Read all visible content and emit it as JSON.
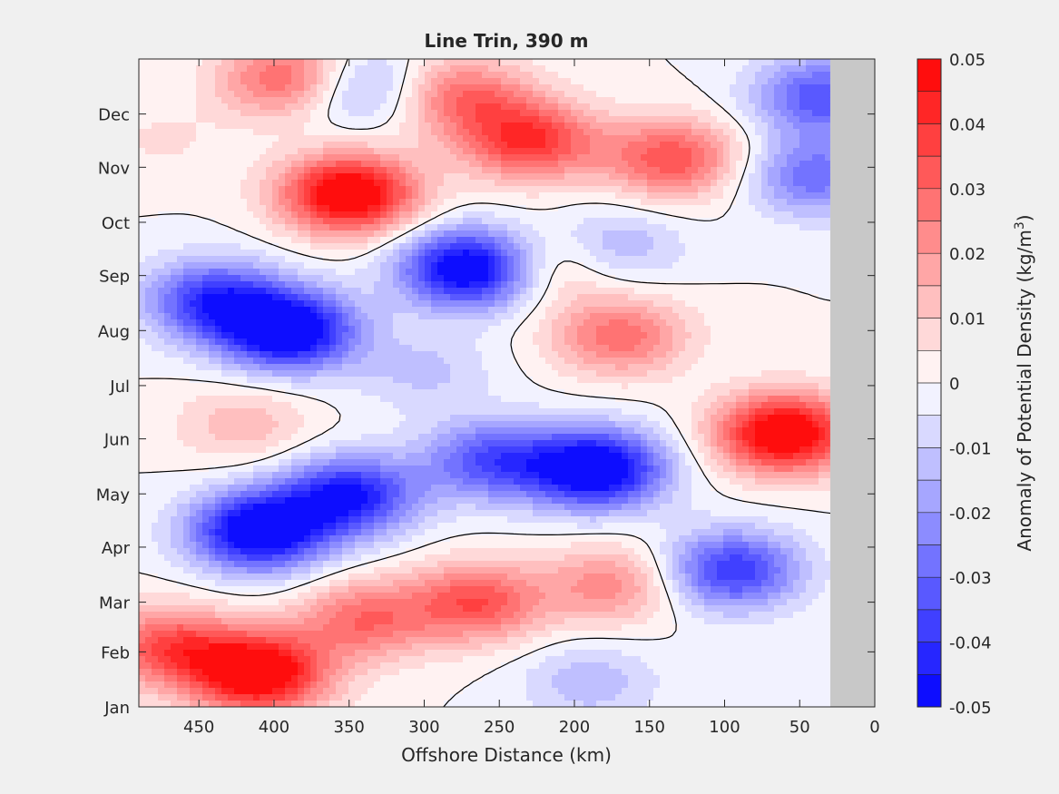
{
  "chart_data": {
    "type": "heatmap",
    "title": "Line Trin, 390 m",
    "xlabel": "Offshore Distance (km)",
    "ylabel": "",
    "xlim": [
      490,
      0
    ],
    "x_reversed": true,
    "x_ticks": [
      450,
      400,
      350,
      300,
      250,
      200,
      150,
      100,
      50,
      0
    ],
    "y_ticks": [
      "Jan",
      "Feb",
      "Mar",
      "Apr",
      "May",
      "Jun",
      "Jul",
      "Aug",
      "Sep",
      "Oct",
      "Nov",
      "Dec"
    ],
    "y_tick_day": [
      1,
      32,
      60,
      91,
      121,
      152,
      182,
      213,
      244,
      274,
      305,
      335
    ],
    "ylim_day": [
      1,
      366
    ],
    "data_x_max_km": 490,
    "data_x_min_km": 30,
    "no_data_color": "#c8c8c8",
    "contour_zero_color": "#000000",
    "colorbar": {
      "label": "Anomaly of Potential Density (kg/m",
      "label_sup": "3",
      "label_close": ")",
      "ticks": [
        "0.05",
        "0.04",
        "0.03",
        "0.02",
        "0.01",
        "0",
        "-0.01",
        "-0.02",
        "-0.03",
        "-0.04",
        "-0.05"
      ],
      "tick_values": [
        0.05,
        0.04,
        0.03,
        0.02,
        0.01,
        0,
        -0.01,
        -0.02,
        -0.03,
        -0.04,
        -0.05
      ],
      "levels": [
        -0.05,
        -0.045,
        -0.04,
        -0.035,
        -0.03,
        -0.025,
        -0.02,
        -0.015,
        -0.01,
        -0.005,
        0,
        0.005,
        0.01,
        0.015,
        0.02,
        0.025,
        0.03,
        0.035,
        0.04,
        0.045,
        0.05
      ],
      "positive_color": "#ff0000",
      "negative_color": "#0000ff",
      "mid_color": "#ffffff"
    },
    "anomaly_features": [
      {
        "x_km": 410,
        "day": 20,
        "value": 0.05
      },
      {
        "x_km": 470,
        "day": 35,
        "value": 0.03
      },
      {
        "x_km": 340,
        "day": 50,
        "value": 0.025
      },
      {
        "x_km": 265,
        "day": 60,
        "value": 0.03
      },
      {
        "x_km": 175,
        "day": 70,
        "value": 0.02
      },
      {
        "x_km": 190,
        "day": 15,
        "value": -0.012
      },
      {
        "x_km": 410,
        "day": 100,
        "value": -0.05
      },
      {
        "x_km": 350,
        "day": 120,
        "value": -0.04
      },
      {
        "x_km": 185,
        "day": 135,
        "value": -0.05
      },
      {
        "x_km": 255,
        "day": 140,
        "value": -0.03
      },
      {
        "x_km": 95,
        "day": 78,
        "value": -0.035
      },
      {
        "x_km": 60,
        "day": 155,
        "value": 0.05
      },
      {
        "x_km": 300,
        "day": 190,
        "value": -0.01
      },
      {
        "x_km": 440,
        "day": 230,
        "value": -0.035
      },
      {
        "x_km": 390,
        "day": 213,
        "value": -0.05
      },
      {
        "x_km": 270,
        "day": 248,
        "value": -0.05
      },
      {
        "x_km": 170,
        "day": 210,
        "value": 0.025
      },
      {
        "x_km": 350,
        "day": 290,
        "value": 0.05
      },
      {
        "x_km": 230,
        "day": 320,
        "value": 0.035
      },
      {
        "x_km": 135,
        "day": 310,
        "value": 0.03
      },
      {
        "x_km": 390,
        "day": 355,
        "value": 0.03
      },
      {
        "x_km": 275,
        "day": 345,
        "value": 0.025
      },
      {
        "x_km": 345,
        "day": 350,
        "value": -0.02
      },
      {
        "x_km": 40,
        "day": 300,
        "value": -0.025
      },
      {
        "x_km": 35,
        "day": 345,
        "value": -0.03
      },
      {
        "x_km": 175,
        "day": 260,
        "value": -0.015
      },
      {
        "x_km": 420,
        "day": 160,
        "value": 0.012
      },
      {
        "x_km": 475,
        "day": 320,
        "value": 0.005
      },
      {
        "x_km": 215,
        "day": 250,
        "value": 0.015
      }
    ]
  }
}
